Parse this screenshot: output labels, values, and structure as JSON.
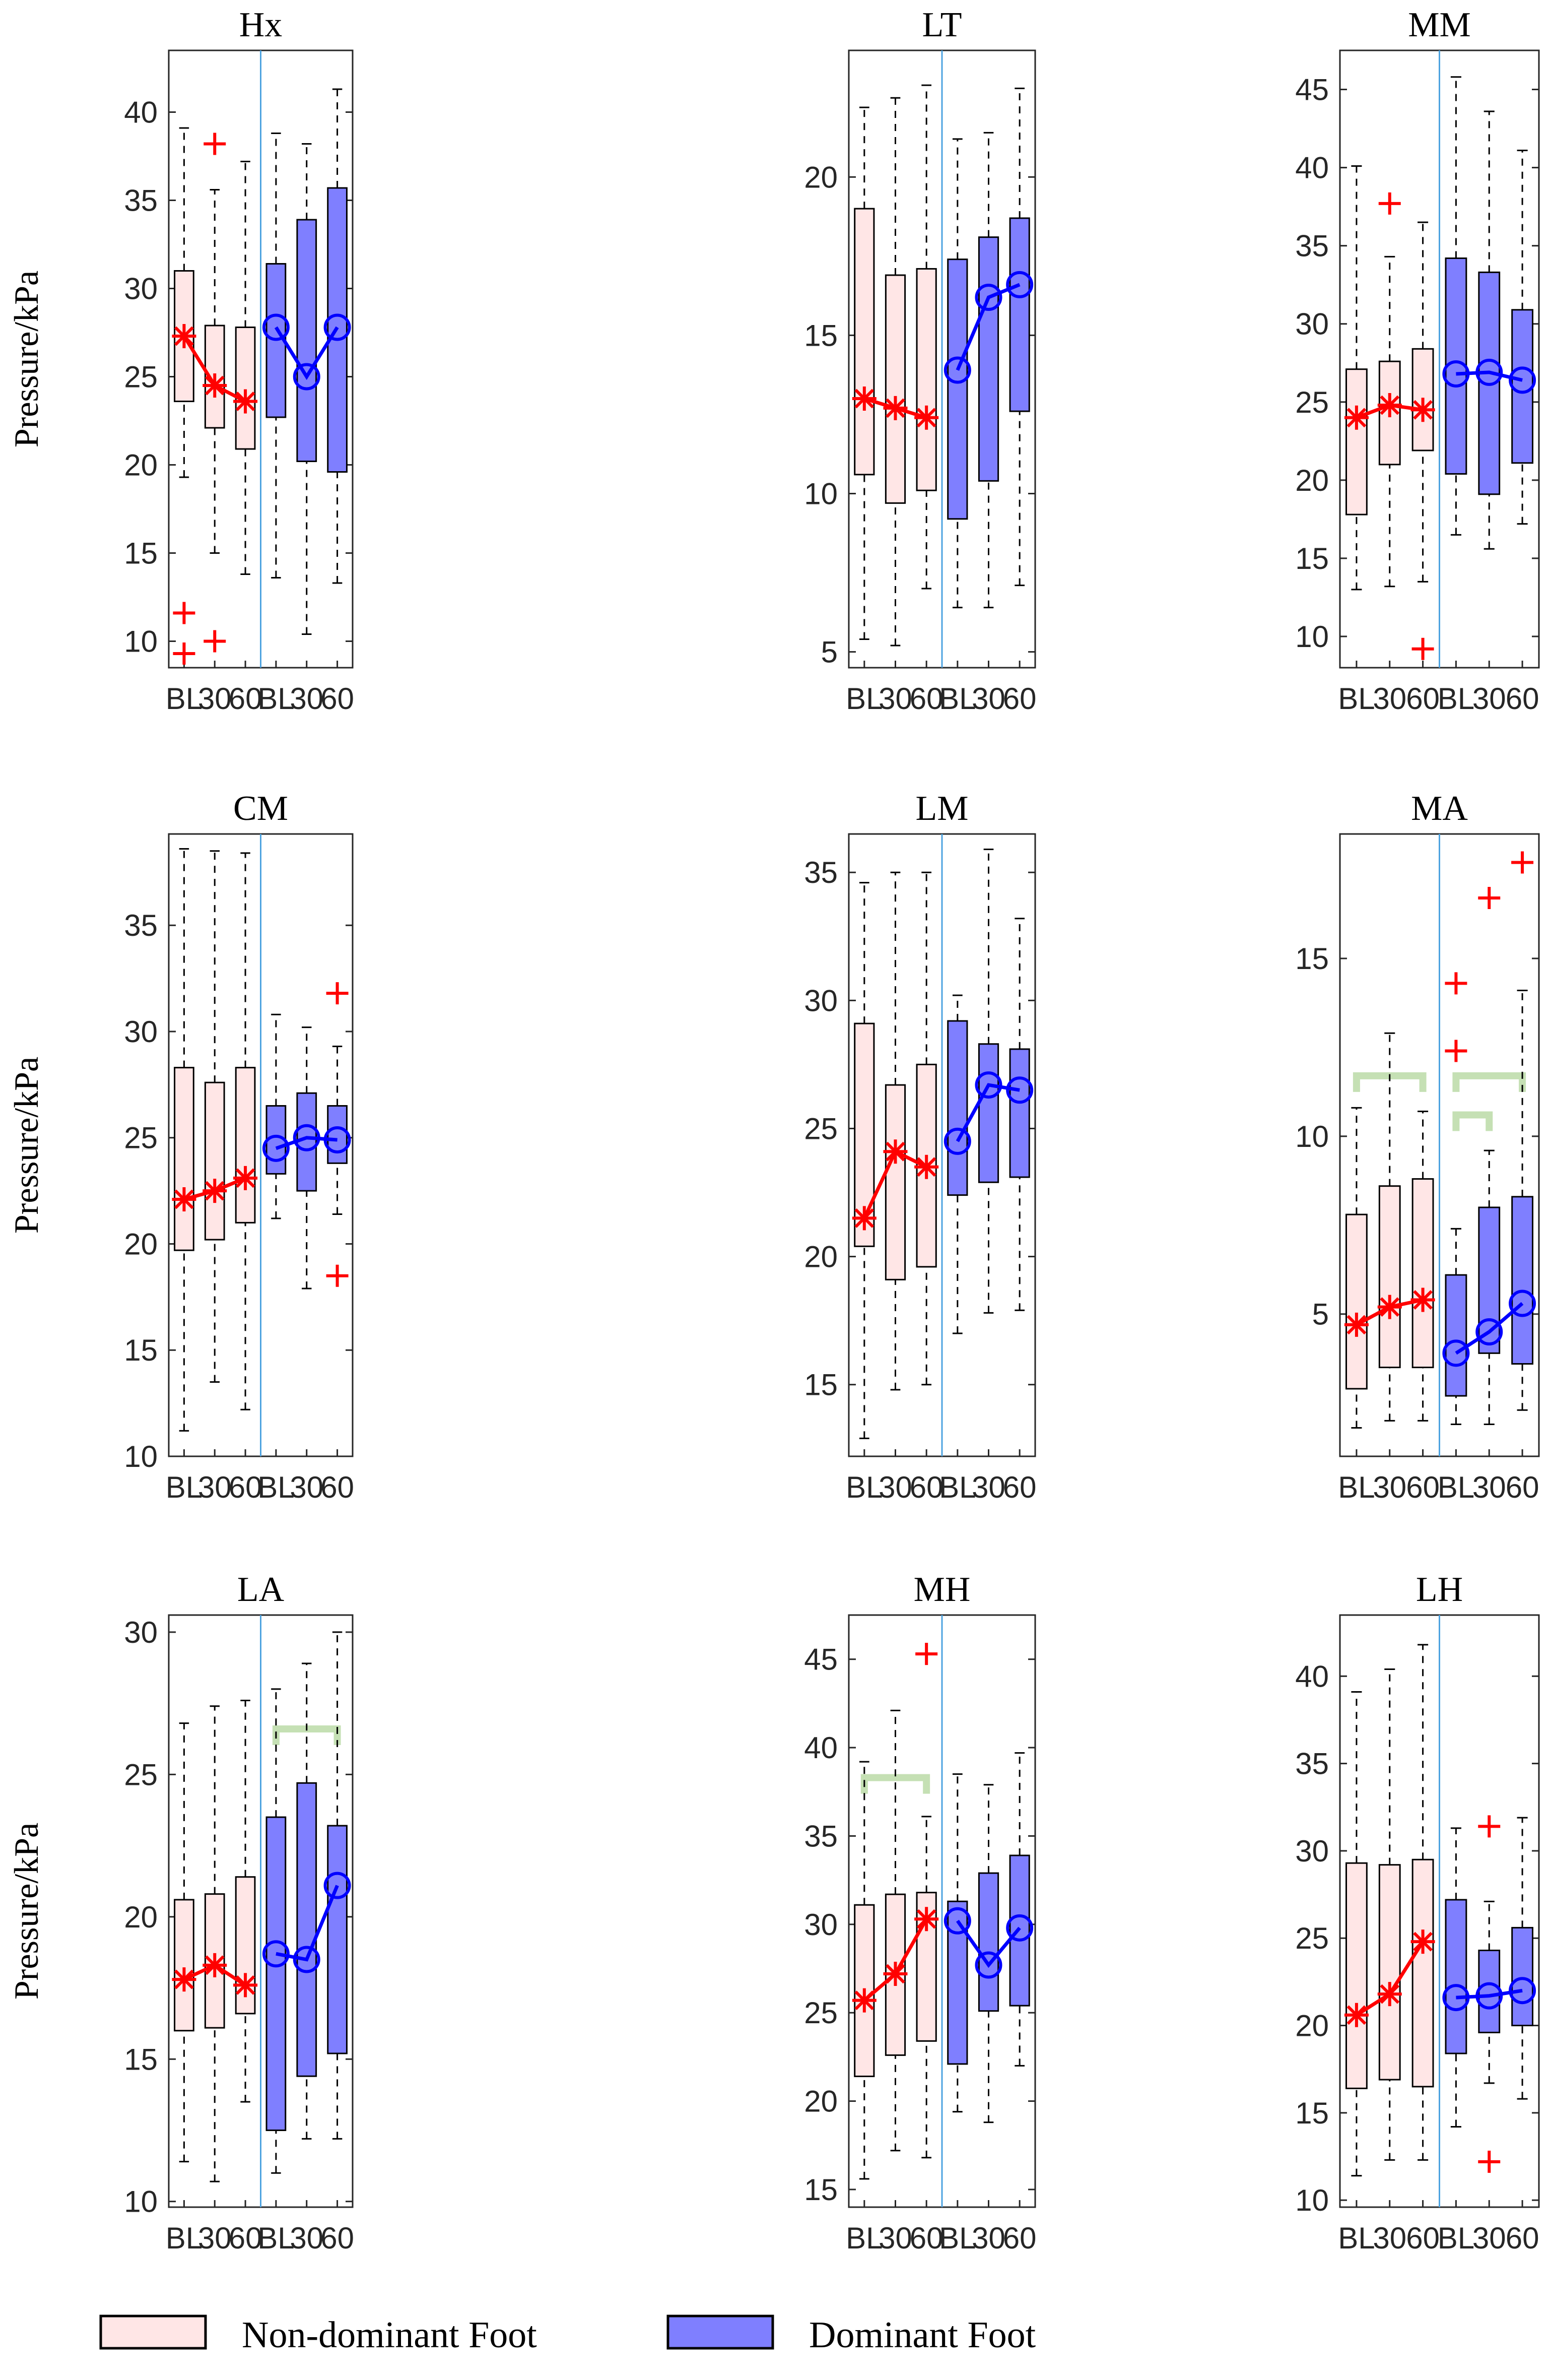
{
  "colors": {
    "nondominant_fill": "#ffe6e6",
    "dominant_fill": "#7f7fff",
    "nondominant_line": "#ff0000",
    "dominant_line": "#0000ff",
    "significance": "#c5e0b4",
    "divider": "#4da3e0",
    "outlier": "#ff0000",
    "axis": "#262626"
  },
  "legend": {
    "nondominant_label": "Non-dominant Foot",
    "dominant_label": "Dominant Foot"
  },
  "chart_data": [
    {
      "type": "box",
      "title": "Hx",
      "ylabel": "Pressure/kPa",
      "ylim": [
        8.5,
        43.5
      ],
      "yticks": [
        10,
        15,
        20,
        25,
        30,
        35,
        40
      ],
      "categories": [
        "BL",
        "30",
        "60",
        "BL",
        "30",
        "60"
      ],
      "boxes": [
        {
          "foot": "Non-dominant Foot",
          "time": "BL",
          "min": 19.3,
          "q1": 23.6,
          "median": 27.3,
          "q3": 31.0,
          "max": 39.1,
          "outliers": [
            11.6,
            9.3
          ]
        },
        {
          "foot": "Non-dominant Foot",
          "time": "30",
          "min": 15.0,
          "q1": 22.1,
          "median": 24.5,
          "q3": 27.9,
          "max": 35.6,
          "outliers": [
            38.2,
            10.0
          ]
        },
        {
          "foot": "Non-dominant Foot",
          "time": "60",
          "min": 13.8,
          "q1": 20.9,
          "median": 23.6,
          "q3": 27.8,
          "max": 37.2,
          "outliers": []
        },
        {
          "foot": "Dominant Foot",
          "time": "BL",
          "min": 13.6,
          "q1": 22.7,
          "median": 27.8,
          "q3": 31.4,
          "max": 38.8,
          "outliers": []
        },
        {
          "foot": "Dominant Foot",
          "time": "30",
          "min": 10.4,
          "q1": 20.2,
          "median": 25.0,
          "q3": 33.9,
          "max": 38.2,
          "outliers": []
        },
        {
          "foot": "Dominant Foot",
          "time": "60",
          "min": 13.3,
          "q1": 19.6,
          "median": 27.8,
          "q3": 35.7,
          "max": 41.3,
          "outliers": []
        }
      ],
      "significance": []
    },
    {
      "type": "box",
      "title": "LT",
      "ylabel": "",
      "ylim": [
        4.5,
        24.0
      ],
      "yticks": [
        5,
        10,
        15,
        20
      ],
      "categories": [
        "BL",
        "30",
        "60",
        "BL",
        "30",
        "60"
      ],
      "boxes": [
        {
          "foot": "Non-dominant Foot",
          "time": "BL",
          "min": 5.4,
          "q1": 10.6,
          "median": 13.0,
          "q3": 19.0,
          "max": 22.2,
          "outliers": []
        },
        {
          "foot": "Non-dominant Foot",
          "time": "30",
          "min": 5.2,
          "q1": 9.7,
          "median": 12.7,
          "q3": 16.9,
          "max": 22.5,
          "outliers": []
        },
        {
          "foot": "Non-dominant Foot",
          "time": "60",
          "min": 7.0,
          "q1": 10.1,
          "median": 12.4,
          "q3": 17.1,
          "max": 22.9,
          "outliers": []
        },
        {
          "foot": "Dominant Foot",
          "time": "BL",
          "min": 6.4,
          "q1": 9.2,
          "median": 13.9,
          "q3": 17.4,
          "max": 21.2,
          "outliers": []
        },
        {
          "foot": "Dominant Foot",
          "time": "30",
          "min": 6.4,
          "q1": 10.4,
          "median": 16.2,
          "q3": 18.1,
          "max": 21.4,
          "outliers": []
        },
        {
          "foot": "Dominant Foot",
          "time": "60",
          "min": 7.1,
          "q1": 12.6,
          "median": 16.6,
          "q3": 18.7,
          "max": 22.8,
          "outliers": []
        }
      ],
      "significance": []
    },
    {
      "type": "box",
      "title": "MM",
      "ylabel": "",
      "ylim": [
        8.0,
        47.5
      ],
      "yticks": [
        10,
        15,
        20,
        25,
        30,
        35,
        40,
        45
      ],
      "categories": [
        "BL",
        "30",
        "60",
        "BL",
        "30",
        "60"
      ],
      "boxes": [
        {
          "foot": "Non-dominant Foot",
          "time": "BL",
          "min": 13.0,
          "q1": 17.8,
          "median": 24.0,
          "q3": 27.1,
          "max": 40.1,
          "outliers": []
        },
        {
          "foot": "Non-dominant Foot",
          "time": "30",
          "min": 13.2,
          "q1": 21.0,
          "median": 24.8,
          "q3": 27.6,
          "max": 34.3,
          "outliers": [
            37.7
          ]
        },
        {
          "foot": "Non-dominant Foot",
          "time": "60",
          "min": 13.5,
          "q1": 21.9,
          "median": 24.5,
          "q3": 28.4,
          "max": 36.5,
          "outliers": [
            9.2
          ]
        },
        {
          "foot": "Dominant Foot",
          "time": "BL",
          "min": 16.5,
          "q1": 20.4,
          "median": 26.8,
          "q3": 34.2,
          "max": 45.8,
          "outliers": []
        },
        {
          "foot": "Dominant Foot",
          "time": "30",
          "min": 15.6,
          "q1": 19.1,
          "median": 26.9,
          "q3": 33.3,
          "max": 43.6,
          "outliers": []
        },
        {
          "foot": "Dominant Foot",
          "time": "60",
          "min": 17.2,
          "q1": 21.1,
          "median": 26.4,
          "q3": 30.9,
          "max": 41.1,
          "outliers": []
        }
      ],
      "significance": []
    },
    {
      "type": "box",
      "title": "CM",
      "ylabel": "Pressure/kPa",
      "ylim": [
        10.0,
        39.3
      ],
      "yticks": [
        10,
        15,
        20,
        25,
        30,
        35
      ],
      "categories": [
        "BL",
        "30",
        "60",
        "BL",
        "30",
        "60"
      ],
      "boxes": [
        {
          "foot": "Non-dominant Foot",
          "time": "BL",
          "min": 11.2,
          "q1": 19.7,
          "median": 22.1,
          "q3": 28.3,
          "max": 38.6,
          "outliers": []
        },
        {
          "foot": "Non-dominant Foot",
          "time": "30",
          "min": 13.5,
          "q1": 20.2,
          "median": 22.5,
          "q3": 27.6,
          "max": 38.5,
          "outliers": []
        },
        {
          "foot": "Non-dominant Foot",
          "time": "60",
          "min": 12.2,
          "q1": 21.0,
          "median": 23.1,
          "q3": 28.3,
          "max": 38.4,
          "outliers": []
        },
        {
          "foot": "Dominant Foot",
          "time": "BL",
          "min": 21.2,
          "q1": 23.3,
          "median": 24.5,
          "q3": 26.5,
          "max": 30.8,
          "outliers": []
        },
        {
          "foot": "Dominant Foot",
          "time": "30",
          "min": 17.9,
          "q1": 22.5,
          "median": 25.0,
          "q3": 27.1,
          "max": 30.2,
          "outliers": []
        },
        {
          "foot": "Dominant Foot",
          "time": "60",
          "min": 21.4,
          "q1": 23.8,
          "median": 24.9,
          "q3": 26.5,
          "max": 29.3,
          "outliers": [
            31.8,
            18.5
          ]
        }
      ],
      "significance": []
    },
    {
      "type": "box",
      "title": "LM",
      "ylabel": "",
      "ylim": [
        12.2,
        36.5
      ],
      "yticks": [
        15,
        20,
        25,
        30,
        35
      ],
      "categories": [
        "BL",
        "30",
        "60",
        "BL",
        "30",
        "60"
      ],
      "boxes": [
        {
          "foot": "Non-dominant Foot",
          "time": "BL",
          "min": 12.9,
          "q1": 20.4,
          "median": 21.5,
          "q3": 29.1,
          "max": 34.6,
          "outliers": []
        },
        {
          "foot": "Non-dominant Foot",
          "time": "30",
          "min": 14.8,
          "q1": 19.1,
          "median": 24.1,
          "q3": 26.7,
          "max": 35.0,
          "outliers": []
        },
        {
          "foot": "Non-dominant Foot",
          "time": "60",
          "min": 15.0,
          "q1": 19.6,
          "median": 23.5,
          "q3": 27.5,
          "max": 35.0,
          "outliers": []
        },
        {
          "foot": "Dominant Foot",
          "time": "BL",
          "min": 17.0,
          "q1": 22.4,
          "median": 24.5,
          "q3": 29.2,
          "max": 30.2,
          "outliers": []
        },
        {
          "foot": "Dominant Foot",
          "time": "30",
          "min": 17.8,
          "q1": 22.9,
          "median": 26.7,
          "q3": 28.3,
          "max": 35.9,
          "outliers": []
        },
        {
          "foot": "Dominant Foot",
          "time": "60",
          "min": 17.9,
          "q1": 23.1,
          "median": 26.5,
          "q3": 28.1,
          "max": 33.2,
          "outliers": []
        }
      ],
      "significance": []
    },
    {
      "type": "box",
      "title": "MA",
      "ylabel": "",
      "ylim": [
        1.0,
        18.5
      ],
      "yticks": [
        5,
        10,
        15
      ],
      "categories": [
        "BL",
        "30",
        "60",
        "BL",
        "30",
        "60"
      ],
      "boxes": [
        {
          "foot": "Non-dominant Foot",
          "time": "BL",
          "min": 1.8,
          "q1": 2.9,
          "median": 4.7,
          "q3": 7.8,
          "max": 10.8,
          "outliers": []
        },
        {
          "foot": "Non-dominant Foot",
          "time": "30",
          "min": 2.0,
          "q1": 3.5,
          "median": 5.2,
          "q3": 8.6,
          "max": 12.9,
          "outliers": []
        },
        {
          "foot": "Non-dominant Foot",
          "time": "60",
          "min": 2.0,
          "q1": 3.5,
          "median": 5.4,
          "q3": 8.8,
          "max": 10.7,
          "outliers": []
        },
        {
          "foot": "Dominant Foot",
          "time": "BL",
          "min": 1.9,
          "q1": 2.7,
          "median": 3.9,
          "q3": 6.1,
          "max": 7.4,
          "outliers": [
            14.3,
            12.4
          ]
        },
        {
          "foot": "Dominant Foot",
          "time": "30",
          "min": 1.9,
          "q1": 3.9,
          "median": 4.5,
          "q3": 8.0,
          "max": 9.6,
          "outliers": [
            16.7
          ]
        },
        {
          "foot": "Dominant Foot",
          "time": "60",
          "min": 2.3,
          "q1": 3.6,
          "median": 5.3,
          "q3": 8.3,
          "max": 14.1,
          "outliers": [
            17.7
          ]
        }
      ],
      "significance": [
        {
          "from": 0,
          "to": 2,
          "y": 11.7
        },
        {
          "from": 3,
          "to": 5,
          "y": 11.7
        },
        {
          "from": 3,
          "to": 4,
          "y": 10.6
        }
      ]
    },
    {
      "type": "box",
      "title": "LA",
      "ylabel": "Pressure/kPa",
      "ylim": [
        9.8,
        30.6
      ],
      "yticks": [
        10,
        15,
        20,
        25,
        30
      ],
      "categories": [
        "BL",
        "30",
        "60",
        "BL",
        "30",
        "60"
      ],
      "boxes": [
        {
          "foot": "Non-dominant Foot",
          "time": "BL",
          "min": 11.4,
          "q1": 16.0,
          "median": 17.8,
          "q3": 20.6,
          "max": 26.8,
          "outliers": []
        },
        {
          "foot": "Non-dominant Foot",
          "time": "30",
          "min": 10.7,
          "q1": 16.1,
          "median": 18.3,
          "q3": 20.8,
          "max": 27.4,
          "outliers": []
        },
        {
          "foot": "Non-dominant Foot",
          "time": "60",
          "min": 13.5,
          "q1": 16.6,
          "median": 17.6,
          "q3": 21.4,
          "max": 27.6,
          "outliers": []
        },
        {
          "foot": "Dominant Foot",
          "time": "BL",
          "min": 11.0,
          "q1": 12.5,
          "median": 18.7,
          "q3": 23.5,
          "max": 28.0,
          "outliers": []
        },
        {
          "foot": "Dominant Foot",
          "time": "30",
          "min": 12.2,
          "q1": 14.4,
          "median": 18.5,
          "q3": 24.7,
          "max": 28.9,
          "outliers": []
        },
        {
          "foot": "Dominant Foot",
          "time": "60",
          "min": 12.2,
          "q1": 15.2,
          "median": 21.1,
          "q3": 23.2,
          "max": 30.0,
          "outliers": []
        }
      ],
      "significance": [
        {
          "from": 3,
          "to": 5,
          "y": 26.6
        }
      ]
    },
    {
      "type": "box",
      "title": "MH",
      "ylabel": "",
      "ylim": [
        14.0,
        47.5
      ],
      "yticks": [
        15,
        20,
        25,
        30,
        35,
        40,
        45
      ],
      "categories": [
        "BL",
        "30",
        "60",
        "BL",
        "30",
        "60"
      ],
      "boxes": [
        {
          "foot": "Non-dominant Foot",
          "time": "BL",
          "min": 15.6,
          "q1": 21.4,
          "median": 25.7,
          "q3": 31.1,
          "max": 39.2,
          "outliers": []
        },
        {
          "foot": "Non-dominant Foot",
          "time": "30",
          "min": 17.2,
          "q1": 22.6,
          "median": 27.2,
          "q3": 31.7,
          "max": 42.1,
          "outliers": []
        },
        {
          "foot": "Non-dominant Foot",
          "time": "60",
          "min": 16.8,
          "q1": 23.4,
          "median": 30.3,
          "q3": 31.8,
          "max": 36.1,
          "outliers": [
            45.3
          ]
        },
        {
          "foot": "Dominant Foot",
          "time": "BL",
          "min": 19.4,
          "q1": 22.1,
          "median": 30.2,
          "q3": 31.3,
          "max": 38.5,
          "outliers": []
        },
        {
          "foot": "Dominant Foot",
          "time": "30",
          "min": 18.8,
          "q1": 25.1,
          "median": 27.7,
          "q3": 32.9,
          "max": 37.9,
          "outliers": []
        },
        {
          "foot": "Dominant Foot",
          "time": "60",
          "min": 22.0,
          "q1": 25.4,
          "median": 29.8,
          "q3": 33.9,
          "max": 39.7,
          "outliers": []
        }
      ],
      "significance": [
        {
          "from": 0,
          "to": 2,
          "y": 38.3
        }
      ]
    },
    {
      "type": "box",
      "title": "LH",
      "ylabel": "",
      "ylim": [
        9.6,
        43.5
      ],
      "yticks": [
        10,
        15,
        20,
        25,
        30,
        35,
        40
      ],
      "categories": [
        "BL",
        "30",
        "60",
        "BL",
        "30",
        "60"
      ],
      "boxes": [
        {
          "foot": "Non-dominant Foot",
          "time": "BL",
          "min": 11.4,
          "q1": 16.4,
          "median": 20.6,
          "q3": 29.3,
          "max": 39.1,
          "outliers": []
        },
        {
          "foot": "Non-dominant Foot",
          "time": "30",
          "min": 12.3,
          "q1": 16.9,
          "median": 21.8,
          "q3": 29.2,
          "max": 40.4,
          "outliers": []
        },
        {
          "foot": "Non-dominant Foot",
          "time": "60",
          "min": 12.3,
          "q1": 16.5,
          "median": 24.8,
          "q3": 29.5,
          "max": 41.8,
          "outliers": []
        },
        {
          "foot": "Dominant Foot",
          "time": "BL",
          "min": 14.2,
          "q1": 18.4,
          "median": 21.6,
          "q3": 27.2,
          "max": 31.3,
          "outliers": []
        },
        {
          "foot": "Dominant Foot",
          "time": "30",
          "min": 16.7,
          "q1": 19.6,
          "median": 21.7,
          "q3": 24.3,
          "max": 27.1,
          "outliers": [
            31.4,
            12.2
          ]
        },
        {
          "foot": "Dominant Foot",
          "time": "60",
          "min": 15.8,
          "q1": 20.0,
          "median": 22.0,
          "q3": 25.6,
          "max": 31.9,
          "outliers": []
        }
      ],
      "significance": []
    }
  ]
}
